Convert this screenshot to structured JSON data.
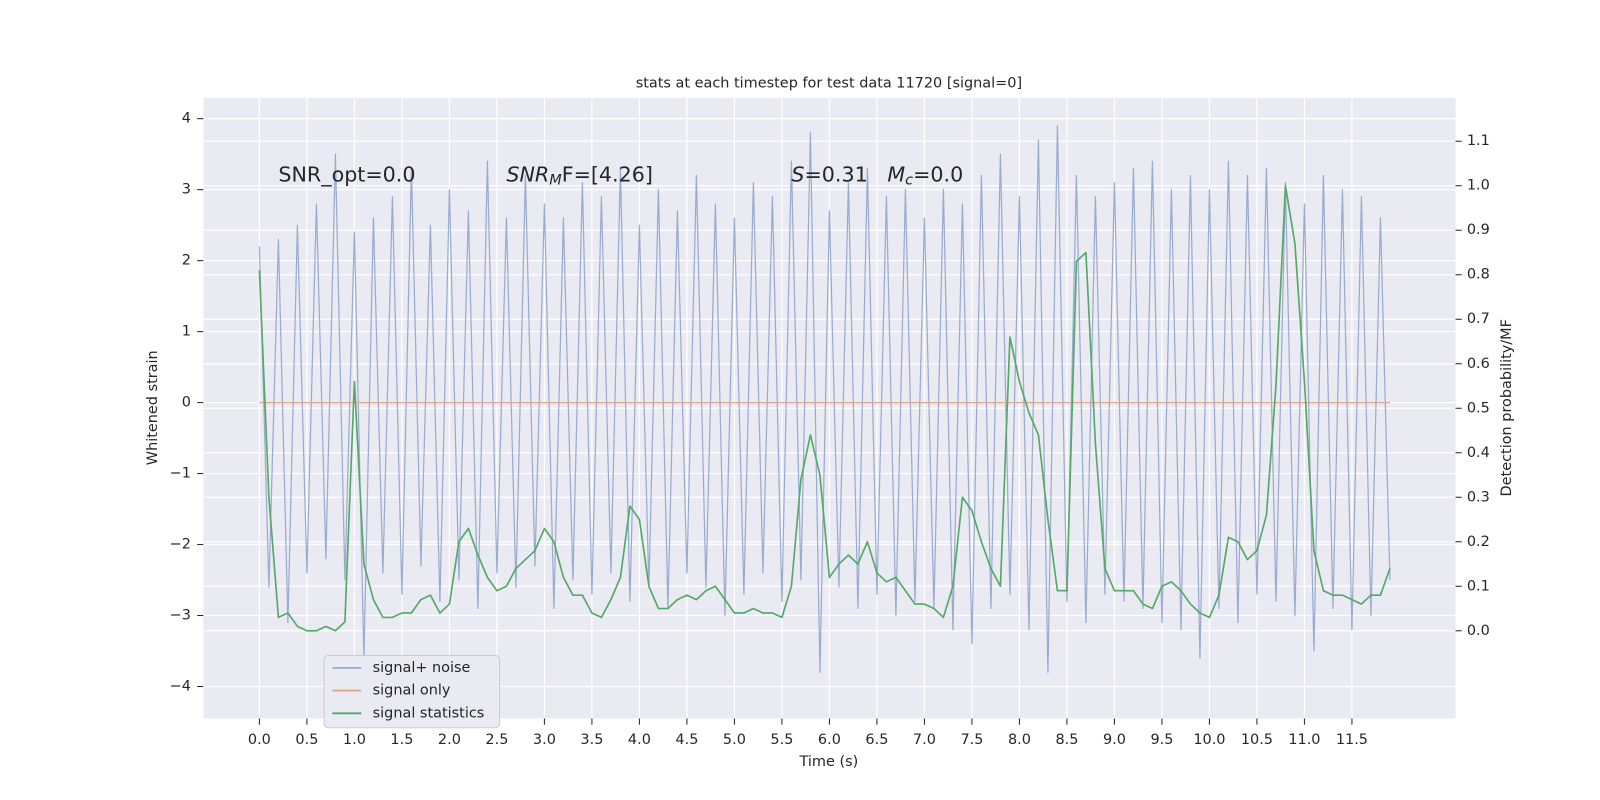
{
  "chart_data": {
    "type": "line",
    "title": "stats at each timestep for test data 11720 [signal=0]",
    "xlabel": "Time (s)",
    "ylabel": "Whitened strain",
    "y2label": "Detection probability/MF",
    "annotations": [
      "SNR_opt=0.0",
      [
        "SNR",
        "M",
        "F=[4.26]"
      ],
      [
        "S",
        "=0.31   ",
        "M",
        "c",
        "=0.0"
      ]
    ],
    "grid": true,
    "x": [
      0,
      0.1,
      0.2,
      0.3,
      0.4,
      0.5,
      0.6,
      0.7,
      0.8,
      0.9,
      1,
      1.1,
      1.2,
      1.3,
      1.4,
      1.5,
      1.6,
      1.7,
      1.8,
      1.9,
      2,
      2.1,
      2.2,
      2.3,
      2.4,
      2.5,
      2.6,
      2.7,
      2.8,
      2.9,
      3,
      3.1,
      3.2,
      3.3,
      3.4,
      3.5,
      3.6,
      3.7,
      3.8,
      3.9,
      4,
      4.1,
      4.2,
      4.3,
      4.4,
      4.5,
      4.6,
      4.7,
      4.8,
      4.9,
      5,
      5.1,
      5.2,
      5.3,
      5.4,
      5.5,
      5.6,
      5.7,
      5.8,
      5.9,
      6,
      6.1,
      6.2,
      6.3,
      6.4,
      6.5,
      6.6,
      6.7,
      6.8,
      6.9,
      7,
      7.1,
      7.2,
      7.3,
      7.4,
      7.5,
      7.6,
      7.7,
      7.8,
      7.9,
      8,
      8.1,
      8.2,
      8.3,
      8.4,
      8.5,
      8.6,
      8.7,
      8.8,
      8.9,
      9,
      9.1,
      9.2,
      9.3,
      9.4,
      9.5,
      9.6,
      9.7,
      9.8,
      9.9,
      10,
      10.1,
      10.2,
      10.3,
      10.4,
      10.5,
      10.6,
      10.7,
      10.8,
      10.9,
      11,
      11.1,
      11.2,
      11.3,
      11.4,
      11.5,
      11.6,
      11.7,
      11.8,
      11.9
    ],
    "series": [
      {
        "name": "signal+ noise",
        "color": "#9aabd0",
        "values": [
          2.2,
          -2.6,
          2.3,
          -3.1,
          2.5,
          -2.4,
          2.8,
          -2.2,
          3.5,
          -2.5,
          2.4,
          -3.6,
          2.6,
          -2.4,
          2.9,
          -2.7,
          3.3,
          -2.3,
          2.5,
          -2.8,
          3.0,
          -2.5,
          2.7,
          -2.9,
          3.4,
          -2.4,
          2.6,
          -2.6,
          3.2,
          -2.3,
          2.8,
          -2.9,
          2.6,
          -2.5,
          3.1,
          -2.7,
          2.9,
          -2.4,
          3.3,
          -2.8,
          2.5,
          -2.6,
          3.0,
          -2.9,
          2.7,
          -2.4,
          3.2,
          -2.6,
          2.8,
          -3.0,
          2.6,
          -2.7,
          3.1,
          -2.4,
          2.9,
          -2.8,
          3.4,
          -2.5,
          3.8,
          -3.8,
          2.7,
          -2.6,
          3.1,
          -2.9,
          3.3,
          -2.7,
          2.9,
          -3.0,
          3.0,
          -2.8,
          2.6,
          -2.9,
          3.0,
          -3.2,
          2.8,
          -3.4,
          3.2,
          -2.9,
          3.5,
          -2.7,
          2.9,
          -3.2,
          3.7,
          -3.8,
          3.9,
          -2.8,
          3.2,
          -3.1,
          2.9,
          -2.7,
          3.1,
          -2.8,
          3.3,
          -2.9,
          3.4,
          -3.1,
          3.0,
          -3.2,
          3.2,
          -3.6,
          3.0,
          -2.9,
          3.4,
          -3.1,
          3.2,
          -2.7,
          3.3,
          -2.8,
          3.1,
          -3.0,
          2.8,
          -3.5,
          3.2,
          -2.9,
          3.0,
          -3.2,
          2.9,
          -3.0,
          2.6,
          -2.5
        ]
      },
      {
        "name": "signal only",
        "color": "#e2a68c",
        "values": [
          0,
          0,
          0,
          0,
          0,
          0,
          0,
          0,
          0,
          0,
          0,
          0,
          0,
          0,
          0,
          0,
          0,
          0,
          0,
          0,
          0,
          0,
          0,
          0,
          0,
          0,
          0,
          0,
          0,
          0,
          0,
          0,
          0,
          0,
          0,
          0,
          0,
          0,
          0,
          0,
          0,
          0,
          0,
          0,
          0,
          0,
          0,
          0,
          0,
          0,
          0,
          0,
          0,
          0,
          0,
          0,
          0,
          0,
          0,
          0,
          0,
          0,
          0,
          0,
          0,
          0,
          0,
          0,
          0,
          0,
          0,
          0,
          0,
          0,
          0,
          0,
          0,
          0,
          0,
          0,
          0,
          0,
          0,
          0,
          0,
          0,
          0,
          0,
          0,
          0,
          0,
          0,
          0,
          0,
          0,
          0,
          0,
          0,
          0,
          0,
          0,
          0,
          0,
          0,
          0,
          0,
          0,
          0,
          0,
          0,
          0,
          0,
          0,
          0,
          0,
          0,
          0,
          0,
          0,
          0
        ]
      },
      {
        "name": "signal statistics",
        "color": "#55a868",
        "axis": "y2",
        "values": [
          0.81,
          0.3,
          0.03,
          0.04,
          0.01,
          0.0,
          0.0,
          0.01,
          0.0,
          0.02,
          0.56,
          0.15,
          0.07,
          0.03,
          0.03,
          0.04,
          0.04,
          0.07,
          0.08,
          0.04,
          0.06,
          0.2,
          0.23,
          0.17,
          0.12,
          0.09,
          0.1,
          0.14,
          0.16,
          0.18,
          0.23,
          0.2,
          0.12,
          0.08,
          0.08,
          0.04,
          0.03,
          0.07,
          0.12,
          0.28,
          0.25,
          0.1,
          0.05,
          0.05,
          0.07,
          0.08,
          0.07,
          0.09,
          0.1,
          0.07,
          0.04,
          0.04,
          0.05,
          0.04,
          0.04,
          0.03,
          0.1,
          0.34,
          0.44,
          0.35,
          0.12,
          0.15,
          0.17,
          0.15,
          0.2,
          0.13,
          0.11,
          0.12,
          0.09,
          0.06,
          0.06,
          0.05,
          0.03,
          0.1,
          0.3,
          0.27,
          0.2,
          0.14,
          0.1,
          0.66,
          0.56,
          0.49,
          0.44,
          0.25,
          0.09,
          0.09,
          0.83,
          0.85,
          0.42,
          0.14,
          0.09,
          0.09,
          0.09,
          0.06,
          0.05,
          0.1,
          0.11,
          0.09,
          0.06,
          0.04,
          0.03,
          0.08,
          0.21,
          0.2,
          0.16,
          0.18,
          0.26,
          0.55,
          1.0,
          0.87,
          0.56,
          0.18,
          0.09,
          0.08,
          0.08,
          0.07,
          0.06,
          0.08,
          0.08,
          0.14
        ]
      }
    ],
    "xlim": [
      -0.59,
      12.59
    ],
    "xticks": [
      {
        "value": 0,
        "label": "0.0"
      },
      0.5,
      {
        "value": 1,
        "label": "1.0"
      },
      1.5,
      {
        "value": 2,
        "label": "2.0"
      },
      2.5,
      {
        "value": 3,
        "label": "3.0"
      },
      3.5,
      {
        "value": 4,
        "label": "4.0"
      },
      4.5,
      {
        "value": 5,
        "label": "5.0"
      },
      5.5,
      {
        "value": 6,
        "label": "6.0"
      },
      6.5,
      {
        "value": 7,
        "label": "7.0"
      },
      7.5,
      {
        "value": 8,
        "label": "8.0"
      },
      8.5,
      {
        "value": 9,
        "label": "9.0"
      },
      9.5,
      {
        "value": 10,
        "label": "10.0"
      },
      10.5,
      {
        "value": 11,
        "label": "11.0"
      },
      11.5
    ],
    "ylim": [
      -4.45,
      4.29
    ],
    "yticks": [
      {
        "value": -4,
        "label": "−4"
      },
      {
        "value": -3,
        "label": "−3"
      },
      {
        "value": -2,
        "label": "−2"
      },
      {
        "value": -1,
        "label": "−1"
      },
      0,
      1,
      2,
      3,
      4
    ],
    "y2lim": [
      -0.197,
      1.197
    ],
    "y2ticks": [
      {
        "value": 0,
        "label": "0.0"
      },
      0.1,
      0.2,
      0.3,
      0.4,
      0.5,
      0.6,
      0.7,
      0.8,
      0.9,
      {
        "value": 1,
        "label": "1.0"
      },
      1.1
    ]
  }
}
